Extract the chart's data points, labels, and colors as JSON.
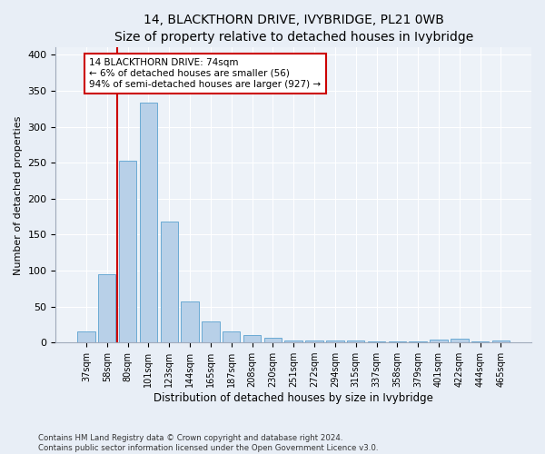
{
  "title": "14, BLACKTHORN DRIVE, IVYBRIDGE, PL21 0WB",
  "subtitle": "Size of property relative to detached houses in Ivybridge",
  "xlabel": "Distribution of detached houses by size in Ivybridge",
  "ylabel": "Number of detached properties",
  "bar_labels": [
    "37sqm",
    "58sqm",
    "80sqm",
    "101sqm",
    "123sqm",
    "144sqm",
    "165sqm",
    "187sqm",
    "208sqm",
    "230sqm",
    "251sqm",
    "272sqm",
    "294sqm",
    "315sqm",
    "337sqm",
    "358sqm",
    "379sqm",
    "401sqm",
    "422sqm",
    "444sqm",
    "465sqm"
  ],
  "bar_values": [
    15,
    95,
    253,
    333,
    168,
    57,
    29,
    16,
    10,
    6,
    3,
    3,
    3,
    3,
    1,
    1,
    1,
    4,
    5,
    1,
    3
  ],
  "bar_color": "#b8d0e8",
  "bar_edge_color": "#6aaad4",
  "vline_color": "#cc0000",
  "annotation_text": "14 BLACKTHORN DRIVE: 74sqm\n← 6% of detached houses are smaller (56)\n94% of semi-detached houses are larger (927) →",
  "annotation_box_color": "#cc0000",
  "ylim": [
    0,
    410
  ],
  "yticks": [
    0,
    50,
    100,
    150,
    200,
    250,
    300,
    350,
    400
  ],
  "footnote1": "Contains HM Land Registry data © Crown copyright and database right 2024.",
  "footnote2": "Contains public sector information licensed under the Open Government Licence v3.0.",
  "bg_color": "#e8eef6",
  "plot_bg_color": "#edf2f8",
  "grid_color": "#ffffff",
  "title_fontsize": 10,
  "subtitle_fontsize": 9
}
